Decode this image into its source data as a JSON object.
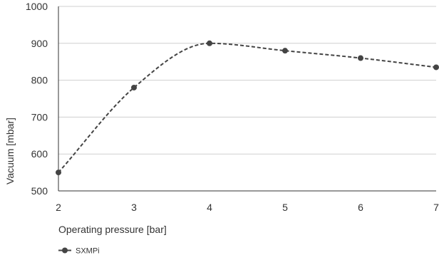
{
  "chart_data": {
    "type": "line",
    "title": "",
    "xlabel": "Operating pressure [bar]",
    "ylabel": "Vacuum [mbar]",
    "xlim": [
      2,
      7
    ],
    "ylim": [
      500,
      1000
    ],
    "x_ticks": [
      2,
      3,
      4,
      5,
      6,
      7
    ],
    "y_ticks": [
      500,
      600,
      700,
      800,
      900,
      1000
    ],
    "grid": true,
    "legend": "bottom-left",
    "series": [
      {
        "name": "SXMPi",
        "color": "#444444",
        "line_style": "dashed",
        "marker": "circle",
        "smooth": true,
        "x": [
          2,
          3,
          4,
          5,
          6,
          7
        ],
        "y": [
          550,
          780,
          900,
          880,
          860,
          835
        ]
      }
    ]
  }
}
